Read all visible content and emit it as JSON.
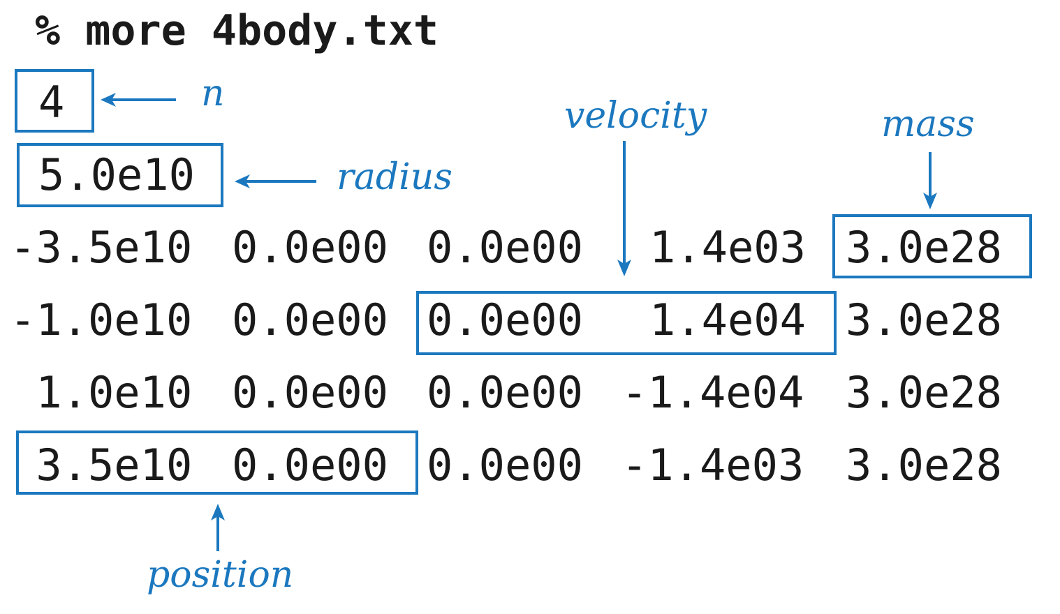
{
  "command": "% more 4body.txt",
  "file": {
    "n": "4",
    "radius": "5.0e10",
    "rows": [
      [
        "-3.5e10",
        "0.0e00",
        "0.0e00",
        "1.4e03",
        "3.0e28"
      ],
      [
        "-1.0e10",
        "0.0e00",
        "0.0e00",
        "1.4e04",
        "3.0e28"
      ],
      [
        " 1.0e10",
        "0.0e00",
        "0.0e00",
        "-1.4e04",
        "3.0e28"
      ],
      [
        " 3.5e10",
        "0.0e00",
        "0.0e00",
        "-1.4e03",
        "3.0e28"
      ]
    ]
  },
  "labels": {
    "n": "n",
    "radius": "radius",
    "velocity": "velocity",
    "mass": "mass",
    "position": "position"
  },
  "colors": {
    "annotation": "#1b78bf",
    "text": "#1a1a1a"
  }
}
